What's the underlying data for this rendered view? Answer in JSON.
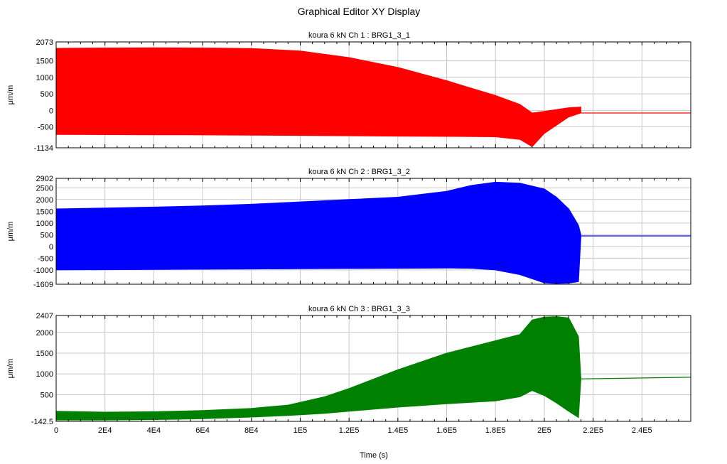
{
  "title": "Graphical Editor XY Display",
  "chart_data": [
    {
      "type": "area",
      "title": "koura 6 kN  Ch 1 : BRG1_3_1",
      "ylabel": "μm/m",
      "xlabel": "",
      "color": "#ff0000",
      "ylim": [
        -1134,
        2073
      ],
      "yticks": [
        -1134,
        -500,
        0,
        500,
        1000,
        1500,
        2073
      ],
      "xlim": [
        0,
        260000
      ],
      "xticks": [
        0,
        20000,
        40000,
        60000,
        80000,
        100000,
        120000,
        140000,
        160000,
        180000,
        200000,
        220000,
        240000
      ],
      "grid": true,
      "series": [
        {
          "x": [
            0,
            20000,
            40000,
            60000,
            80000,
            100000,
            120000,
            140000,
            160000,
            180000,
            190000,
            195000,
            200000,
            210000,
            215000
          ],
          "upper": [
            1880,
            1890,
            1895,
            1890,
            1875,
            1800,
            1600,
            1300,
            900,
            450,
            180,
            -80,
            -30,
            80,
            100
          ],
          "lower": [
            -730,
            -735,
            -740,
            -745,
            -750,
            -760,
            -770,
            -780,
            -790,
            -800,
            -880,
            -1100,
            -700,
            -200,
            -80
          ]
        }
      ],
      "tail": {
        "x": [
          215000,
          260000
        ],
        "y": [
          -80,
          -80
        ]
      }
    },
    {
      "type": "area",
      "title": "koura 6 kN  Ch 2 : BRG1_3_2",
      "ylabel": "μm/m",
      "xlabel": "",
      "color": "#0000ff",
      "ylim": [
        -1609,
        2902
      ],
      "yticks": [
        -1609,
        -1000,
        -500,
        0,
        500,
        1000,
        1500,
        2000,
        2500,
        2902
      ],
      "xlim": [
        0,
        260000
      ],
      "xticks": [
        0,
        20000,
        40000,
        60000,
        80000,
        100000,
        120000,
        140000,
        160000,
        180000,
        200000,
        220000,
        240000
      ],
      "grid": true,
      "series": [
        {
          "x": [
            0,
            20000,
            40000,
            60000,
            80000,
            100000,
            120000,
            140000,
            160000,
            170000,
            180000,
            190000,
            200000,
            205000,
            210000,
            214000,
            215000
          ],
          "upper": [
            1600,
            1640,
            1680,
            1730,
            1800,
            1900,
            2000,
            2100,
            2350,
            2600,
            2740,
            2700,
            2450,
            2100,
            1600,
            900,
            500
          ],
          "lower": [
            -1000,
            -990,
            -980,
            -970,
            -960,
            -950,
            -940,
            -930,
            -920,
            -930,
            -1000,
            -1200,
            -1550,
            -1580,
            -1560,
            -1500,
            400
          ]
        }
      ],
      "tail": {
        "x": [
          215000,
          260000
        ],
        "y": [
          450,
          450
        ]
      }
    },
    {
      "type": "area",
      "title": "koura 6 kN  Ch 3 : BRG1_3_3",
      "ylabel": "μm/m",
      "xlabel": "Time (s)",
      "color": "#008000",
      "ylim": [
        -142.5,
        2407
      ],
      "yticks": [
        -142.5,
        500,
        1000,
        1500,
        2000,
        2407
      ],
      "xlim": [
        0,
        260000
      ],
      "xticks": [
        0,
        20000,
        40000,
        60000,
        80000,
        100000,
        120000,
        140000,
        160000,
        180000,
        200000,
        220000,
        240000
      ],
      "xticklabels": [
        "0",
        "2E4",
        "4E4",
        "6E4",
        "8E4",
        "1E5",
        "1.2E5",
        "1.4E5",
        "1.6E5",
        "1.8E5",
        "2E5",
        "2.2E5",
        "2.4E5"
      ],
      "grid": true,
      "series": [
        {
          "x": [
            0,
            20000,
            40000,
            60000,
            80000,
            95000,
            110000,
            120000,
            140000,
            160000,
            180000,
            190000,
            195000,
            200000,
            205000,
            210000,
            214000,
            215000
          ],
          "upper": [
            100,
            80,
            90,
            120,
            170,
            250,
            450,
            650,
            1100,
            1500,
            1800,
            1950,
            2300,
            2370,
            2380,
            2350,
            1900,
            900
          ],
          "lower": [
            -110,
            -110,
            -100,
            -80,
            -40,
            0,
            50,
            100,
            200,
            280,
            350,
            450,
            600,
            480,
            300,
            100,
            -50,
            880
          ]
        }
      ],
      "tail": {
        "x": [
          215000,
          260000
        ],
        "y": [
          880,
          920
        ]
      }
    }
  ]
}
